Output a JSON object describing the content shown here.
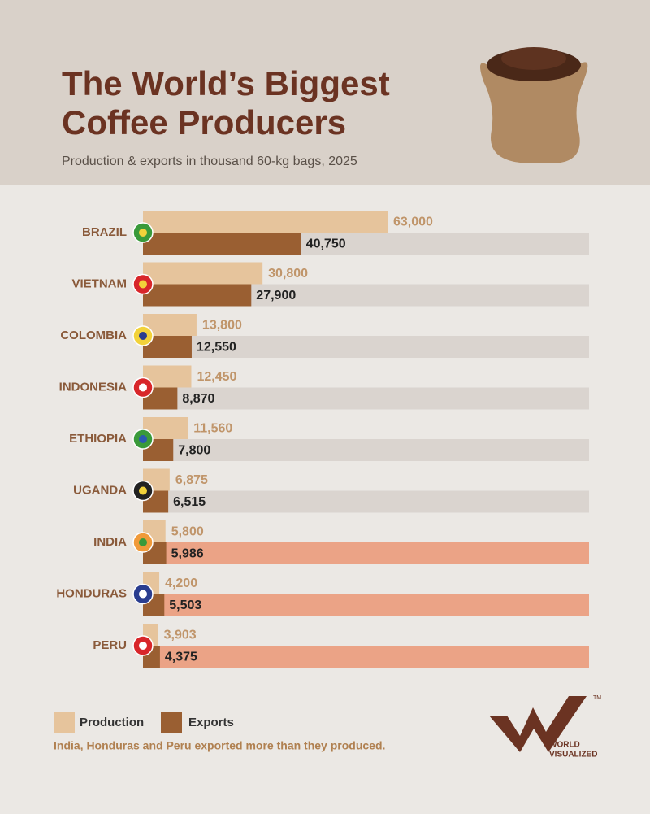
{
  "header": {
    "title_line1": "The World’s Biggest",
    "title_line2": "Coffee Producers",
    "subtitle": "Production & exports in thousand 60-kg bags, 2025"
  },
  "chart_data": {
    "type": "bar",
    "orientation": "horizontal",
    "categories": [
      "BRAZIL",
      "VIETNAM",
      "COLOMBIA",
      "INDONESIA",
      "ETHIOPIA",
      "UGANDA",
      "INDIA",
      "HONDURAS",
      "PERU"
    ],
    "series": [
      {
        "name": "Production",
        "color": "#e6c49c",
        "values": [
          63000,
          30800,
          13800,
          12450,
          11560,
          6875,
          5800,
          4200,
          3903
        ],
        "value_labels": [
          "63,000",
          "30,800",
          "13,800",
          "12,450",
          "11,560",
          "6,875",
          "5,800",
          "4,200",
          "3,903"
        ]
      },
      {
        "name": "Exports",
        "color": "#9a5f32",
        "values": [
          40750,
          27900,
          12550,
          8870,
          7800,
          6515,
          5986,
          5503,
          4375
        ],
        "value_labels": [
          "40,750",
          "27,900",
          "12,550",
          "8,870",
          "7,800",
          "6,515",
          "5,986",
          "5,503",
          "4,375"
        ]
      }
    ],
    "track_color": "#dad4cf",
    "highlight_color": "#eba386",
    "note": "India, Honduras and Peru exported more than they produced."
  },
  "logo": {
    "line1": "WORLD",
    "line2": "VISUALIZED",
    "mark": "TM"
  }
}
